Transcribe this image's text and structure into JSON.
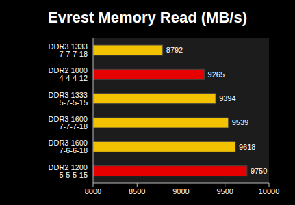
{
  "chart_data": {
    "type": "bar",
    "title": "Evrest Memory Read (MB/s)",
    "orientation": "horizontal",
    "categories": [
      "DDR3 1333 7-7-7-18",
      "DDR2 1000 4-4-4-12",
      "DDR3 1333 5-7-5-15",
      "DDR3 1600 7-7-7-18",
      "DDR3 1600 7-6-6-18",
      "DDR2 1200 5-5-5-15"
    ],
    "values": [
      8792,
      9265,
      9394,
      9539,
      9618,
      9750
    ],
    "colors": [
      "#f2c200",
      "#e60000",
      "#f2c200",
      "#f2c200",
      "#f2c200",
      "#e60000"
    ],
    "xlim": [
      8000,
      10000
    ],
    "xticks": [
      8000,
      8500,
      9000,
      9500,
      10000
    ],
    "grid": false,
    "data_labels": true
  }
}
